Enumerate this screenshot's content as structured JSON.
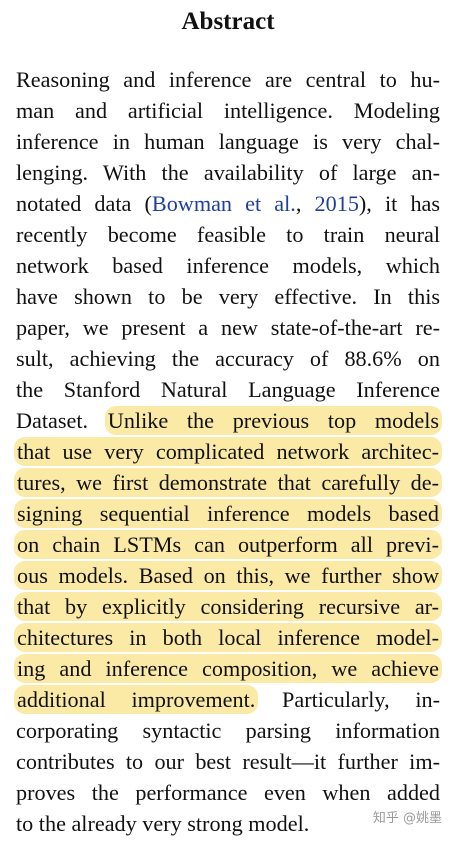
{
  "title": "Abstract",
  "lines": [
    [
      {
        "t": "Reasoning and inference are central to hu-"
      }
    ],
    [
      {
        "t": "man and artificial intelligence. Modeling"
      }
    ],
    [
      {
        "t": "inference in human language is very chal-"
      }
    ],
    [
      {
        "t": "lenging. With the availability of large an-"
      }
    ],
    [
      {
        "t": "notated data ("
      },
      {
        "t": "Bowman et al.",
        "c": true
      },
      {
        "t": ", "
      },
      {
        "t": "2015",
        "c": true
      },
      {
        "t": "), it has"
      }
    ],
    [
      {
        "t": "recently become feasible to train neural"
      }
    ],
    [
      {
        "t": "network based inference models, which"
      }
    ],
    [
      {
        "t": "have shown to be very effective. In this"
      }
    ],
    [
      {
        "t": "paper, we present a new state-of-the-art re-"
      }
    ],
    [
      {
        "t": "sult, achieving the accuracy of 88.6% on"
      }
    ],
    [
      {
        "t": "the Stanford Natural Language Inference"
      }
    ],
    [
      {
        "t": "Dataset. "
      },
      {
        "t": "Unlike the previous top models",
        "h": true
      }
    ],
    [
      {
        "t": "that use very complicated network architec-",
        "h": true
      }
    ],
    [
      {
        "t": "tures, we first demonstrate that carefully de-",
        "h": true
      }
    ],
    [
      {
        "t": "signing sequential inference models based",
        "h": true
      }
    ],
    [
      {
        "t": "on chain LSTMs can outperform all previ-",
        "h": true
      }
    ],
    [
      {
        "t": "ous models. Based on this, we further show",
        "h": true
      }
    ],
    [
      {
        "t": "that by explicitly considering recursive ar-",
        "h": true
      }
    ],
    [
      {
        "t": "chitectures in both local inference model-",
        "h": true
      }
    ],
    [
      {
        "t": "ing and inference composition, we achieve",
        "h": true
      }
    ],
    [
      {
        "t": "additional improvement.",
        "h": true
      },
      {
        "t": " Particularly, in-"
      }
    ],
    [
      {
        "t": "corporating syntactic parsing information"
      }
    ],
    [
      {
        "t": "contributes to our best result—it further im-"
      }
    ],
    [
      {
        "t": "proves the performance even when added"
      }
    ],
    [
      {
        "t": "to the already very strong model."
      }
    ]
  ],
  "watermark": "知乎 @姚墨",
  "colors": {
    "highlight": "#fbe9a6",
    "citation": "#1f3f9e",
    "text": "#111111"
  }
}
